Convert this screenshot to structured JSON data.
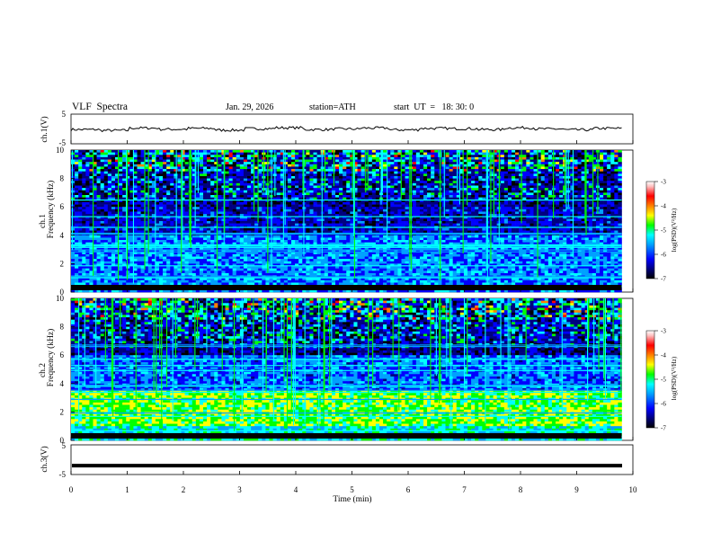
{
  "header": {
    "title": "VLF  Spectra",
    "date": "Jan. 29, 2026",
    "station": "station=ATH",
    "start": "start  UT  =   18: 30: 0"
  },
  "chart_data": [
    {
      "type": "line",
      "panel": "ch1-waveform",
      "ylabel": "ch.1(V)",
      "xlim": [
        0,
        10
      ],
      "ylim": [
        -5,
        5
      ],
      "yticks": [
        "5",
        "-5"
      ],
      "series_description_values": [
        -0.2,
        -0.5,
        0.3,
        -0.1,
        0.2,
        -0.4,
        0.1,
        0.4,
        -0.2,
        0.0,
        0.3,
        -0.3,
        0.2,
        0.1,
        -0.2,
        0.4,
        0.0,
        -0.3,
        0.2,
        0.1
      ]
    },
    {
      "type": "heatmap",
      "panel": "ch1-spectrogram",
      "ylabel": "ch.1",
      "ylabel2": "Frequency  (kHz)",
      "xlim": [
        0,
        10
      ],
      "ylim": [
        0,
        10
      ],
      "yticks": [
        "0",
        "2",
        "4",
        "6",
        "8",
        "10"
      ],
      "colorbar": {
        "label": "log(PSD)(V²/Hz)",
        "ticks": [
          "-3",
          "-4",
          "-5",
          "-6",
          "-7"
        ],
        "range": [
          -7,
          -3
        ]
      }
    },
    {
      "type": "heatmap",
      "panel": "ch2-spectrogram",
      "ylabel": "ch.2",
      "ylabel2": "Frequency  (kHz)",
      "xlim": [
        0,
        10
      ],
      "ylim": [
        0,
        10
      ],
      "yticks": [
        "0",
        "2",
        "4",
        "6",
        "8",
        "10"
      ],
      "colorbar": {
        "label": "log(PSD)(V²/Hz)",
        "ticks": [
          "-3",
          "-4",
          "-5",
          "-6",
          "-7"
        ],
        "range": [
          -7,
          -3
        ]
      }
    },
    {
      "type": "line",
      "panel": "ch3-waveform",
      "ylabel": "ch.3(V)",
      "xlim": [
        0,
        10
      ],
      "ylim": [
        -5,
        5
      ],
      "yticks": [
        "5",
        "-5"
      ],
      "constant_value": -2.0
    }
  ],
  "xaxis": {
    "label": "Time  (min)",
    "ticks": [
      "0",
      "1",
      "2",
      "3",
      "4",
      "5",
      "6",
      "7",
      "8",
      "9",
      "10"
    ]
  },
  "colors": {
    "colormap": [
      "#000000",
      "#000080",
      "#0000ff",
      "#00a0ff",
      "#00ffff",
      "#00ff00",
      "#ffff00",
      "#ff8000",
      "#ff0000",
      "#ffc0c0",
      "#ffffff"
    ]
  }
}
